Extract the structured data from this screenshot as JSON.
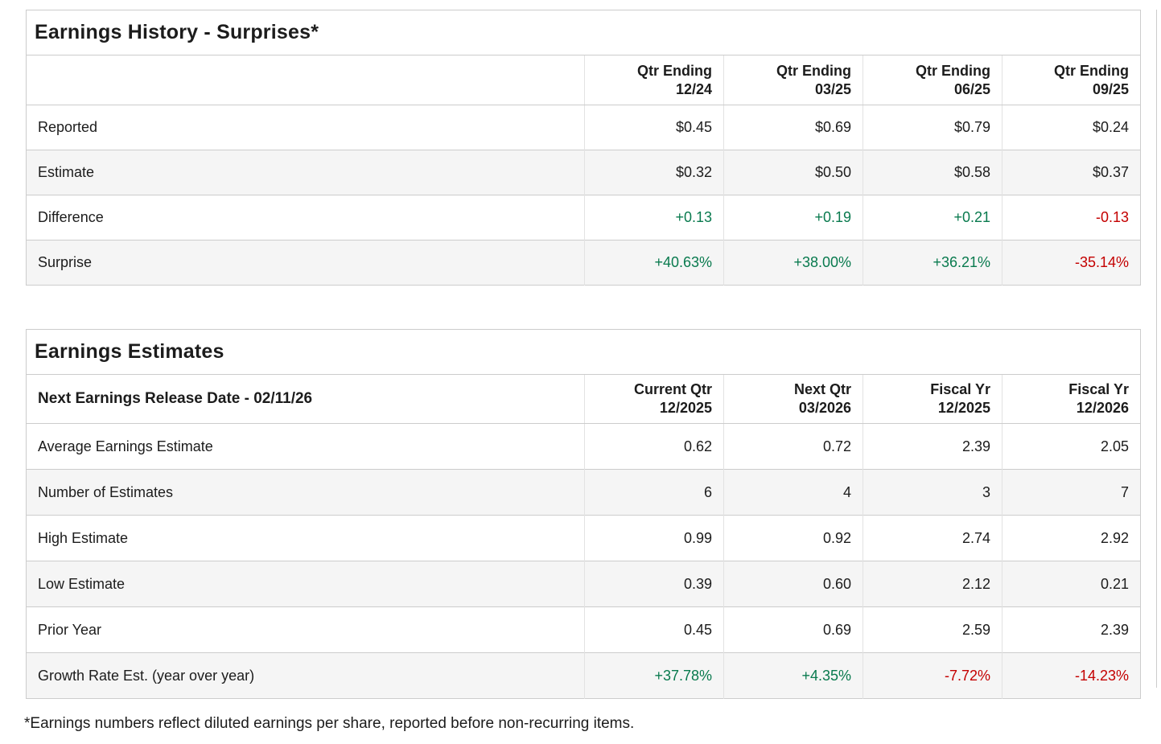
{
  "colors": {
    "positive": "#097a4e",
    "negative": "#c40000",
    "text": "#1c1c1c",
    "border": "#cccccc",
    "zebra": "#f5f5f5",
    "divider": "#e2e2e2"
  },
  "earnings_history": {
    "title": "Earnings History - Surprises*",
    "columns": [
      "Qtr Ending\n12/24",
      "Qtr Ending\n03/25",
      "Qtr Ending\n06/25",
      "Qtr Ending\n09/25"
    ],
    "rows": [
      {
        "label": "Reported",
        "values": [
          "$0.45",
          "$0.69",
          "$0.79",
          "$0.24"
        ]
      },
      {
        "label": "Estimate",
        "values": [
          "$0.32",
          "$0.50",
          "$0.58",
          "$0.37"
        ]
      },
      {
        "label": "Difference",
        "values": [
          "+0.13",
          "+0.19",
          "+0.21",
          "-0.13"
        ]
      },
      {
        "label": "Surprise",
        "values": [
          "+40.63%",
          "+38.00%",
          "+36.21%",
          "-35.14%"
        ]
      }
    ]
  },
  "earnings_estimates": {
    "title": "Earnings Estimates",
    "release_date_label": "Next Earnings Release Date - 02/11/26",
    "columns": [
      "Current Qtr\n12/2025",
      "Next Qtr\n03/2026",
      "Fiscal Yr\n12/2025",
      "Fiscal Yr\n12/2026"
    ],
    "rows": [
      {
        "label": "Average Earnings Estimate",
        "values": [
          "0.62",
          "0.72",
          "2.39",
          "2.05"
        ]
      },
      {
        "label": "Number of Estimates",
        "values": [
          "6",
          "4",
          "3",
          "7"
        ]
      },
      {
        "label": "High Estimate",
        "values": [
          "0.99",
          "0.92",
          "2.74",
          "2.92"
        ]
      },
      {
        "label": "Low Estimate",
        "values": [
          "0.39",
          "0.60",
          "2.12",
          "0.21"
        ]
      },
      {
        "label": "Prior Year",
        "values": [
          "0.45",
          "0.69",
          "2.59",
          "2.39"
        ]
      },
      {
        "label": "Growth Rate Est. (year over year)",
        "values": [
          "+37.78%",
          "+4.35%",
          "-7.72%",
          "-14.23%"
        ]
      }
    ]
  },
  "footnote": "*Earnings numbers reflect diluted earnings per share, reported before non-recurring items."
}
